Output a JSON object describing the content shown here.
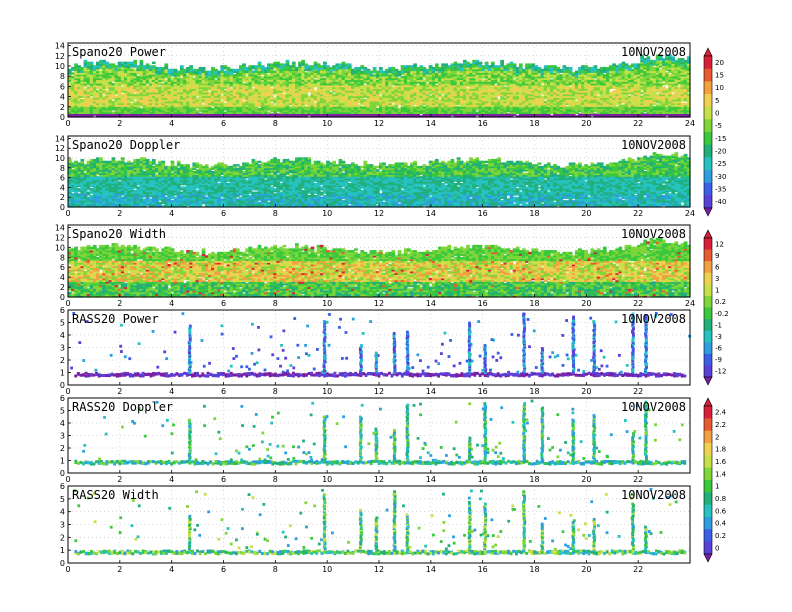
{
  "chart_data": [
    {
      "type": "heatmap",
      "title": "Spano20 Power",
      "date": "10NOV2008",
      "x_ticks": [
        "0",
        "2",
        "4",
        "6",
        "8",
        "10",
        "12",
        "14",
        "16",
        "18",
        "20",
        "22",
        "24"
      ],
      "y_ticks": [
        "0",
        "2",
        "4",
        "6",
        "8",
        "10",
        "12",
        "14"
      ],
      "xlim": [
        0,
        24
      ],
      "ylim": [
        0,
        14.5
      ],
      "top_base": 10,
      "colorbar": 0,
      "regime": "power"
    },
    {
      "type": "heatmap",
      "title": "Spano20 Doppler",
      "date": "10NOV2008",
      "x_ticks": [
        "0",
        "2",
        "4",
        "6",
        "8",
        "10",
        "12",
        "14",
        "16",
        "18",
        "20",
        "22",
        "24"
      ],
      "y_ticks": [
        "0",
        "2",
        "4",
        "6",
        "8",
        "10",
        "12",
        "14"
      ],
      "xlim": [
        0,
        24
      ],
      "ylim": [
        0,
        14.5
      ],
      "top_base": 9,
      "colorbar": 0,
      "regime": "doppler"
    },
    {
      "type": "heatmap",
      "title": "Spano20 Width",
      "date": "10NOV2008",
      "x_ticks": [
        "0",
        "2",
        "4",
        "6",
        "8",
        "10",
        "12",
        "14",
        "16",
        "18",
        "20",
        "22",
        "24"
      ],
      "y_ticks": [
        "0",
        "2",
        "4",
        "6",
        "8",
        "10",
        "12",
        "14"
      ],
      "xlim": [
        0,
        24
      ],
      "ylim": [
        0,
        14.5
      ],
      "top_base": 9.5,
      "colorbar": 1,
      "regime": "width"
    },
    {
      "type": "scatter",
      "title": "RASS20 Power",
      "date": "10NOV2008",
      "x_ticks": [
        "0",
        "2",
        "4",
        "6",
        "8",
        "10",
        "12",
        "14",
        "16",
        "18",
        "20",
        "22"
      ],
      "y_ticks": [
        "0",
        "1",
        "2",
        "3",
        "4",
        "5",
        "6"
      ],
      "xlim": [
        0,
        24
      ],
      "ylim": [
        0,
        6
      ],
      "colorbar": 1,
      "regime": "rpower",
      "columns": [
        4.7,
        9.9,
        11.3,
        11.9,
        12.6,
        13.1,
        15.5,
        16.1,
        17.6,
        18.3,
        19.5,
        20.3,
        21.8,
        22.3
      ]
    },
    {
      "type": "scatter",
      "title": "RASS20 Doppler",
      "date": "10NOV2008",
      "x_ticks": [
        "0",
        "2",
        "4",
        "6",
        "8",
        "10",
        "12",
        "14",
        "16",
        "18",
        "20",
        "22"
      ],
      "y_ticks": [
        "0",
        "1",
        "2",
        "3",
        "4",
        "5",
        "6"
      ],
      "xlim": [
        0,
        24
      ],
      "ylim": [
        0,
        6
      ],
      "colorbar": 2,
      "regime": "rdoppler",
      "columns": [
        4.7,
        9.9,
        11.3,
        11.9,
        12.6,
        13.1,
        15.5,
        16.1,
        17.6,
        18.3,
        19.5,
        20.3,
        21.8,
        22.3
      ]
    },
    {
      "type": "scatter",
      "title": "RASS20 Width",
      "date": "10NOV2008",
      "x_ticks": [
        "0",
        "2",
        "4",
        "6",
        "8",
        "10",
        "12",
        "14",
        "16",
        "18",
        "20",
        "22"
      ],
      "y_ticks": [
        "0",
        "1",
        "2",
        "3",
        "4",
        "5",
        "6"
      ],
      "xlim": [
        0,
        24
      ],
      "ylim": [
        0,
        6
      ],
      "colorbar": 2,
      "regime": "rwidth",
      "columns": [
        4.7,
        9.9,
        11.3,
        11.9,
        12.6,
        13.1,
        15.5,
        16.1,
        17.6,
        18.3,
        19.5,
        20.3,
        21.8,
        22.3
      ]
    }
  ],
  "colorbars": [
    {
      "labels": [
        "20",
        "15",
        "10",
        "5",
        "0",
        "-5",
        "-15",
        "-20",
        "-25",
        "-30",
        "-35",
        "-40"
      ]
    },
    {
      "labels": [
        "12",
        "9",
        "6",
        "3",
        "1",
        "0.2",
        "-0.2",
        "-1",
        "-3",
        "-6",
        "-9",
        "-12"
      ]
    },
    {
      "labels": [
        "2.4",
        "2.2",
        "2",
        "1.8",
        "1.6",
        "1.4",
        "1",
        "0.8",
        "0.6",
        "0.4",
        "0.2",
        "0"
      ]
    }
  ],
  "palette": [
    "#7b1fa2",
    "#5a3fd8",
    "#3a5fe6",
    "#2d9fe0",
    "#26c2c2",
    "#22b07a",
    "#3cc83c",
    "#7fd63a",
    "#c6e04a",
    "#f0d050",
    "#f4a040",
    "#e85a30",
    "#d81f3a"
  ]
}
